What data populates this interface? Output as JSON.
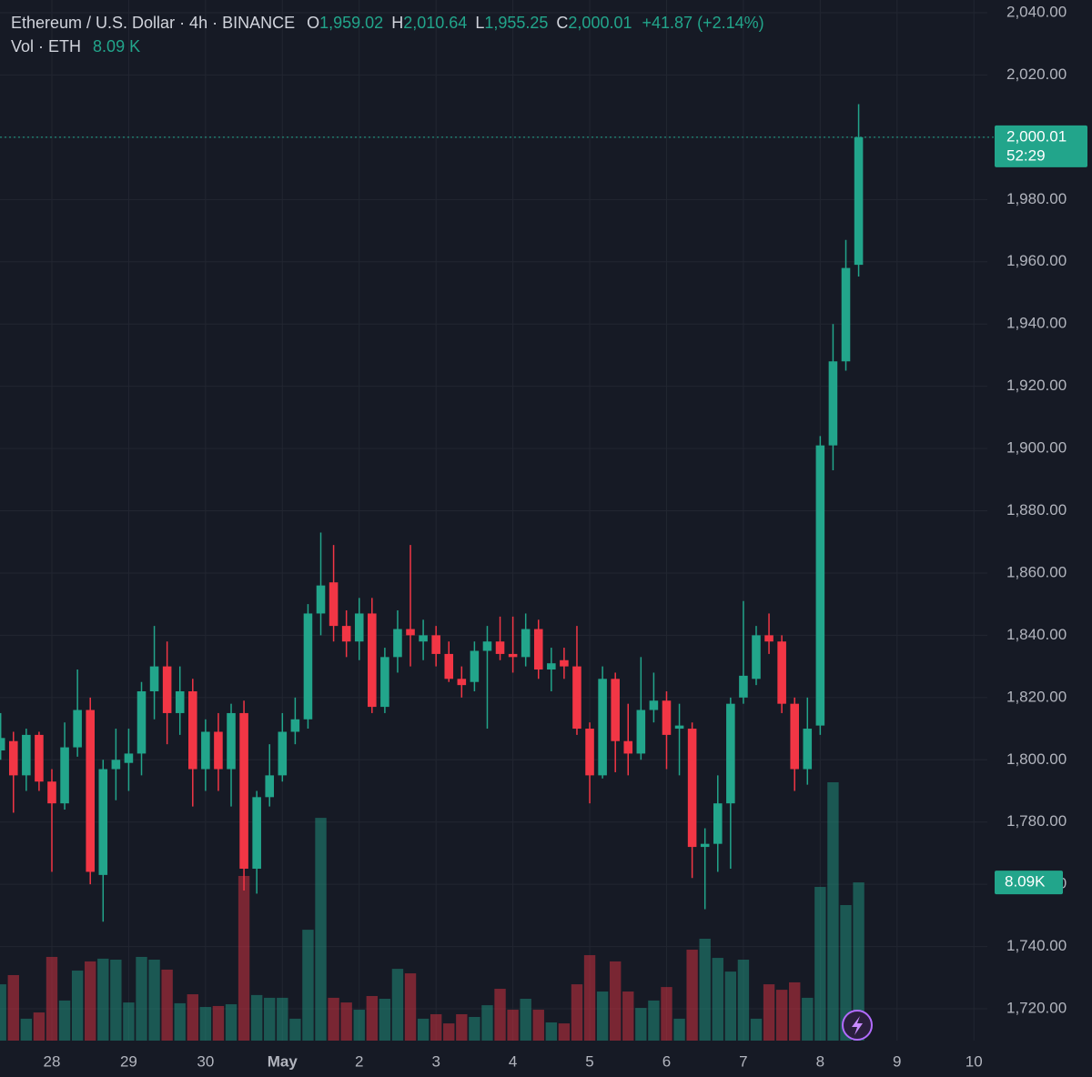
{
  "chart_data": {
    "type": "candlestick",
    "title": "Ethereum / U.S. Dollar · 4h · BINANCE",
    "header": {
      "open_label": "O",
      "open_value": "1,959.02",
      "high_label": "H",
      "high_value": "2,010.64",
      "low_label": "L",
      "low_value": "1,955.25",
      "close_label": "C",
      "close_value": "2,000.01",
      "change": "+41.87 (+2.14%)",
      "volume_label": "Vol · ETH",
      "volume_value": "8.09 K"
    },
    "last_price_label": "2,000.01",
    "countdown": "52:29",
    "last_volume_label": "8.09K",
    "up_color": "#22a58b",
    "down_color": "#f23645",
    "grid": true,
    "xlim": [
      -0.05,
      77.05
    ],
    "ylim": [
      1709.78,
      2044.09
    ],
    "xticks": [
      {
        "value": 4,
        "label": "28"
      },
      {
        "value": 10,
        "label": "29"
      },
      {
        "value": 16,
        "label": "30"
      },
      {
        "value": 22,
        "label": "May"
      },
      {
        "value": 28,
        "label": "2"
      },
      {
        "value": 34,
        "label": "3"
      },
      {
        "value": 40,
        "label": "4"
      },
      {
        "value": 46,
        "label": "5"
      },
      {
        "value": 52,
        "label": "6"
      },
      {
        "value": 58,
        "label": "7"
      },
      {
        "value": 64,
        "label": "8"
      },
      {
        "value": 70,
        "label": "9"
      },
      {
        "value": 76,
        "label": "10"
      }
    ],
    "yticks": [
      {
        "value": 1720,
        "label": "1,720.00"
      },
      {
        "value": 1740,
        "label": "1,740.00"
      },
      {
        "value": 1760,
        "label": "1,760.00"
      },
      {
        "value": 1780,
        "label": "1,780.00"
      },
      {
        "value": 1800,
        "label": "1,800.00"
      },
      {
        "value": 1820,
        "label": "1,820.00"
      },
      {
        "value": 1840,
        "label": "1,840.00"
      },
      {
        "value": 1860,
        "label": "1,860.00"
      },
      {
        "value": 1880,
        "label": "1,880.00"
      },
      {
        "value": 1900,
        "label": "1,900.00"
      },
      {
        "value": 1920,
        "label": "1,920.00"
      },
      {
        "value": 1940,
        "label": "1,940.00"
      },
      {
        "value": 1960,
        "label": "1,960.00"
      },
      {
        "value": 1980,
        "label": "1,980.00"
      },
      {
        "value": 2000,
        "label": "2,000.00"
      },
      {
        "value": 2020,
        "label": "2,020.00"
      },
      {
        "value": 2040,
        "label": "2,040.00"
      }
    ],
    "open": [
      1803,
      1806,
      1795,
      1808,
      1793,
      1786,
      1804,
      1816,
      1763,
      1797,
      1799,
      1802,
      1822,
      1830,
      1815,
      1822,
      1797,
      1809,
      1797,
      1815,
      1765,
      1788,
      1795,
      1809,
      1813,
      1847,
      1857,
      1843,
      1838,
      1847,
      1817,
      1833,
      1842,
      1838,
      1840,
      1834,
      1826,
      1825,
      1835,
      1838,
      1834,
      1833,
      1842,
      1829,
      1832,
      1830,
      1810,
      1795,
      1826,
      1806,
      1802,
      1816,
      1819,
      1810,
      1810,
      1772,
      1773,
      1786,
      1820,
      1826,
      1840,
      1838,
      1818,
      1797,
      1811,
      1901,
      1928,
      1959.02
    ],
    "high": [
      1815,
      1809,
      1810,
      1809,
      1797,
      1812,
      1829,
      1820,
      1800,
      1810,
      1810,
      1825,
      1843,
      1838,
      1830,
      1826,
      1813,
      1815,
      1818,
      1819,
      1790,
      1805,
      1815,
      1820,
      1850,
      1873,
      1869,
      1848,
      1852,
      1852,
      1836,
      1848,
      1869,
      1845,
      1843,
      1838,
      1830,
      1838,
      1843,
      1846,
      1846,
      1847,
      1845,
      1836,
      1836,
      1843,
      1812,
      1830,
      1828,
      1818,
      1833,
      1828,
      1822,
      1818,
      1812,
      1778,
      1795,
      1820,
      1851,
      1843,
      1847,
      1840,
      1820,
      1820,
      1904,
      1940,
      1967,
      2010.64
    ],
    "low": [
      1800,
      1783,
      1790,
      1790,
      1764,
      1784,
      1801,
      1760,
      1748,
      1787,
      1790,
      1795,
      1813,
      1805,
      1808,
      1785,
      1790,
      1790,
      1785,
      1758,
      1757,
      1785,
      1793,
      1805,
      1810,
      1840,
      1838,
      1833,
      1832,
      1815,
      1815,
      1828,
      1830,
      1832,
      1830,
      1825,
      1820,
      1822,
      1810,
      1832,
      1828,
      1830,
      1826,
      1822,
      1826,
      1808,
      1786,
      1794,
      1796,
      1795,
      1800,
      1812,
      1797,
      1795,
      1762,
      1752,
      1764,
      1765,
      1818,
      1824,
      1834,
      1815,
      1790,
      1792,
      1808,
      1893,
      1925,
      1955.25
    ],
    "close": [
      1807,
      1795,
      1808,
      1793,
      1786,
      1804,
      1816,
      1764,
      1797,
      1800,
      1802,
      1822,
      1830,
      1815,
      1822,
      1797,
      1809,
      1797,
      1815,
      1765,
      1788,
      1795,
      1809,
      1813,
      1847,
      1856,
      1843,
      1838,
      1847,
      1817,
      1833,
      1842,
      1840,
      1840,
      1834,
      1826,
      1824,
      1835,
      1838,
      1834,
      1833,
      1842,
      1829,
      1831,
      1830,
      1810,
      1795,
      1826,
      1806,
      1802,
      1816,
      1819,
      1808,
      1811,
      1772,
      1773,
      1786,
      1818,
      1827,
      1840,
      1838,
      1818,
      1797,
      1810,
      1901,
      1928,
      1958,
      2000.01
    ],
    "volume": [
      2.88,
      3.35,
      1.12,
      1.44,
      4.28,
      2.05,
      3.58,
      4.05,
      4.19,
      4.14,
      1.95,
      4.28,
      4.14,
      3.63,
      1.91,
      2.37,
      1.72,
      1.77,
      1.86,
      8.42,
      2.33,
      2.19,
      2.19,
      1.12,
      5.67,
      11.39,
      2.19,
      1.95,
      1.58,
      2.28,
      2.14,
      3.67,
      3.44,
      1.12,
      1.35,
      0.88,
      1.35,
      1.21,
      1.81,
      2.65,
      1.58,
      2.14,
      1.58,
      0.93,
      0.88,
      2.88,
      4.37,
      2.51,
      4.05,
      2.51,
      1.67,
      2.05,
      2.74,
      1.12,
      4.65,
      5.21,
      4.23,
      3.53,
      4.14,
      1.12,
      2.88,
      2.6,
      2.98,
      2.19,
      7.86,
      13.21,
      6.93,
      8.09
    ]
  }
}
